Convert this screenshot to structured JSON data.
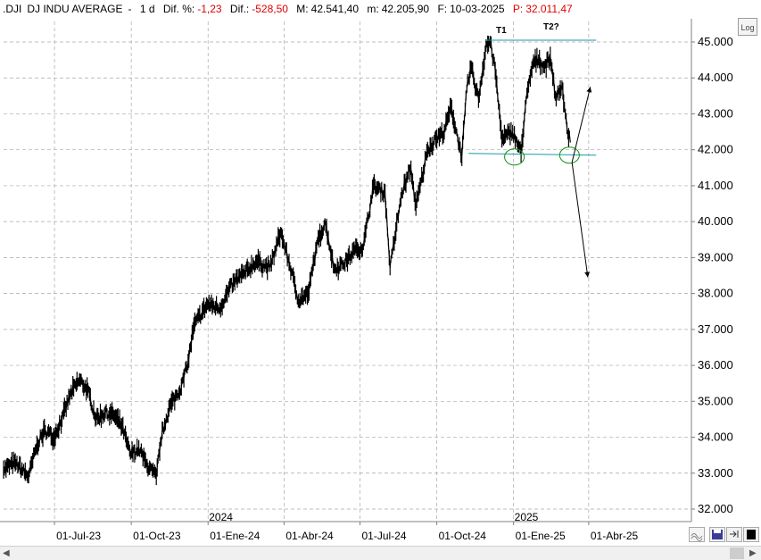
{
  "header": {
    "symbol": ".DJI",
    "name": "DJ INDU AVERAGE",
    "period": "1 d",
    "dif_pct_label": "Dif. %:",
    "dif_pct": "-1,23",
    "dif_label": "Dif.:",
    "dif": "-528,50",
    "max_label": "M:",
    "max": "42.541,40",
    "min_label": "m:",
    "min": "42.205,90",
    "date_label": "F:",
    "date": "10-03-2025",
    "p_label": "P:",
    "p": "32.011,47"
  },
  "log_label": "Log",
  "annotations": {
    "t1": "T1",
    "t2": "T2?"
  },
  "colors": {
    "line": "#000000",
    "support": "#1a9aaa",
    "negative": "#e00000",
    "green": "#109010"
  },
  "chart_data": {
    "type": "line",
    "x_start": "2023-05-01",
    "x_end": "2025-04-30",
    "ylim": [
      31700,
      46000
    ],
    "y_ticks": [
      "45.000",
      "44.000",
      "43.000",
      "42.000",
      "41.000",
      "40.000",
      "39.000",
      "38.000",
      "37.000",
      "36.000",
      "35.000",
      "34.000",
      "33.000",
      "32.000"
    ],
    "y_tick_values": [
      45000,
      44000,
      43000,
      42000,
      41000,
      40000,
      39000,
      38000,
      37000,
      36000,
      35000,
      34000,
      33000,
      32000
    ],
    "x_ticks": [
      "01-Jul-23",
      "01-Oct-23",
      "01-Ene-24",
      "01-Abr-24",
      "01-Jul-24",
      "01-Oct-24",
      "01-Ene-25",
      "01-Abr-25"
    ],
    "x_tick_dates": [
      "2023-07-01",
      "2023-10-01",
      "2024-01-01",
      "2024-04-01",
      "2024-07-01",
      "2024-10-01",
      "2025-01-01",
      "2025-04-01"
    ],
    "year_labels": [
      {
        "label": "2024",
        "date": "2024-01-01"
      },
      {
        "label": "2025",
        "date": "2025-01-01"
      }
    ],
    "grid": true,
    "series": [
      {
        "points": [
          [
            "2023-05-01",
            33100
          ],
          [
            "2023-05-15",
            33300
          ],
          [
            "2023-05-31",
            32900
          ],
          [
            "2023-06-10",
            33800
          ],
          [
            "2023-06-20",
            34200
          ],
          [
            "2023-06-30",
            34000
          ],
          [
            "2023-07-10",
            34500
          ],
          [
            "2023-07-20",
            35200
          ],
          [
            "2023-07-31",
            35600
          ],
          [
            "2023-08-10",
            35300
          ],
          [
            "2023-08-20",
            34500
          ],
          [
            "2023-08-31",
            34700
          ],
          [
            "2023-09-10",
            34600
          ],
          [
            "2023-09-20",
            34300
          ],
          [
            "2023-09-30",
            33500
          ],
          [
            "2023-10-10",
            33700
          ],
          [
            "2023-10-20",
            33200
          ],
          [
            "2023-10-31",
            32900
          ],
          [
            "2023-11-05",
            33900
          ],
          [
            "2023-11-15",
            34800
          ],
          [
            "2023-11-30",
            35400
          ],
          [
            "2023-12-08",
            36100
          ],
          [
            "2023-12-15",
            37100
          ],
          [
            "2023-12-31",
            37700
          ],
          [
            "2024-01-15",
            37600
          ],
          [
            "2024-01-31",
            38300
          ],
          [
            "2024-02-15",
            38600
          ],
          [
            "2024-02-28",
            38900
          ],
          [
            "2024-03-15",
            38700
          ],
          [
            "2024-03-28",
            39700
          ],
          [
            "2024-04-10",
            38600
          ],
          [
            "2024-04-18",
            37800
          ],
          [
            "2024-04-30",
            38000
          ],
          [
            "2024-05-10",
            39300
          ],
          [
            "2024-05-20",
            40000
          ],
          [
            "2024-05-31",
            38700
          ],
          [
            "2024-06-10",
            38800
          ],
          [
            "2024-06-25",
            39200
          ],
          [
            "2024-07-05",
            39300
          ],
          [
            "2024-07-17",
            41000
          ],
          [
            "2024-07-31",
            40800
          ],
          [
            "2024-08-06",
            38700
          ],
          [
            "2024-08-20",
            40800
          ],
          [
            "2024-08-31",
            41500
          ],
          [
            "2024-09-06",
            40400
          ],
          [
            "2024-09-20",
            42000
          ],
          [
            "2024-09-30",
            42300
          ],
          [
            "2024-10-10",
            42500
          ],
          [
            "2024-10-18",
            43200
          ],
          [
            "2024-10-31",
            41800
          ],
          [
            "2024-11-06",
            43700
          ],
          [
            "2024-11-11",
            44300
          ],
          [
            "2024-11-20",
            43400
          ],
          [
            "2024-11-29",
            44900
          ],
          [
            "2024-12-04",
            45000
          ],
          [
            "2024-12-10",
            44200
          ],
          [
            "2024-12-18",
            42300
          ],
          [
            "2024-12-31",
            42500
          ],
          [
            "2025-01-10",
            41900
          ],
          [
            "2025-01-15",
            43200
          ],
          [
            "2025-01-24",
            44400
          ],
          [
            "2025-01-31",
            44500
          ],
          [
            "2025-02-07",
            44300
          ],
          [
            "2025-02-14",
            44600
          ],
          [
            "2025-02-21",
            43400
          ],
          [
            "2025-02-28",
            43800
          ],
          [
            "2025-03-06",
            42600
          ],
          [
            "2025-03-10",
            42200
          ]
        ]
      }
    ],
    "resistance": {
      "start": "2024-11-28",
      "end": "2025-04-10",
      "value": 45050
    },
    "support": {
      "start": "2024-11-08",
      "end": "2025-04-10",
      "y_start": 41900,
      "y_end": 41850
    },
    "projection_up": {
      "from": [
        "2025-03-12",
        41650
      ],
      "to": [
        "2025-04-03",
        43750
      ]
    },
    "projection_down": {
      "from": [
        "2025-03-12",
        41650
      ],
      "to": [
        "2025-03-31",
        38450
      ]
    },
    "circles": [
      {
        "date": "2025-01-02",
        "value": 41800
      },
      {
        "date": "2025-03-09",
        "value": 41850
      }
    ]
  }
}
